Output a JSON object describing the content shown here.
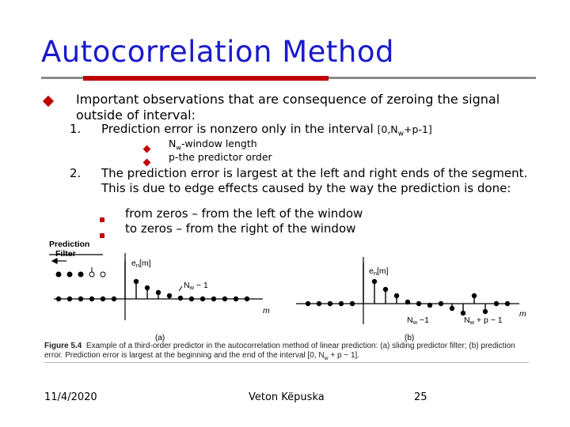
{
  "title": "Autocorrelation Method",
  "main_bullet": "Important observations that are consequence of zeroing the signal outside of interval:",
  "items": [
    {
      "num": "1.",
      "text": "Prediction error is nonzero only in the interval",
      "interval_pre": "[0,N",
      "interval_sub": "w",
      "interval_post": "+p-1]",
      "subs": [
        {
          "pre": "N",
          "sub": "w",
          "rest": "-window length"
        },
        {
          "pre": "p-the predictor order",
          "sub": "",
          "rest": ""
        }
      ]
    },
    {
      "num": "2.",
      "text": "The prediction error is largest at the left and right ends of the segment. This is due to edge effects caused by the way the prediction is done:",
      "subs": [
        "from zeros – from the left of the window",
        "to zeros – from the right of the window"
      ]
    }
  ],
  "figure": {
    "filter_label_1": "Prediction",
    "filter_label_2": "Filter",
    "left_signal": "e",
    "left_signal_sub": "n",
    "left_signal_arg": "[m]",
    "left_marker_pre": "N",
    "left_marker_sub": "w",
    "left_marker_post": " − 1",
    "axis_m": "m",
    "right_signal": "e",
    "right_signal_sub": "n",
    "right_signal_arg": "[m]",
    "right_marker1_pre": "N",
    "right_marker1_sub": "w",
    "right_marker1_post": " −1",
    "right_marker2_pre": "N",
    "right_marker2_sub": "w",
    "right_marker2_post": " + p − 1",
    "panel_a": "(a)",
    "panel_b": "(b)",
    "caption_label": "Figure 5.4",
    "caption_text": "Example of a third-order predictor in the autocorrelation method of linear prediction: (a) sliding predictor filter; (b) prediction error. Prediction error is largest at the beginning and the end of the interval [0, N",
    "caption_sub": "w",
    "caption_end": " + p − 1]."
  },
  "footer": {
    "date": "11/4/2020",
    "author": "Veton Këpuska",
    "page": "25"
  },
  "colors": {
    "title": "#1a1acc",
    "bullet": "#c00000",
    "rule": "#8c8c8c"
  }
}
